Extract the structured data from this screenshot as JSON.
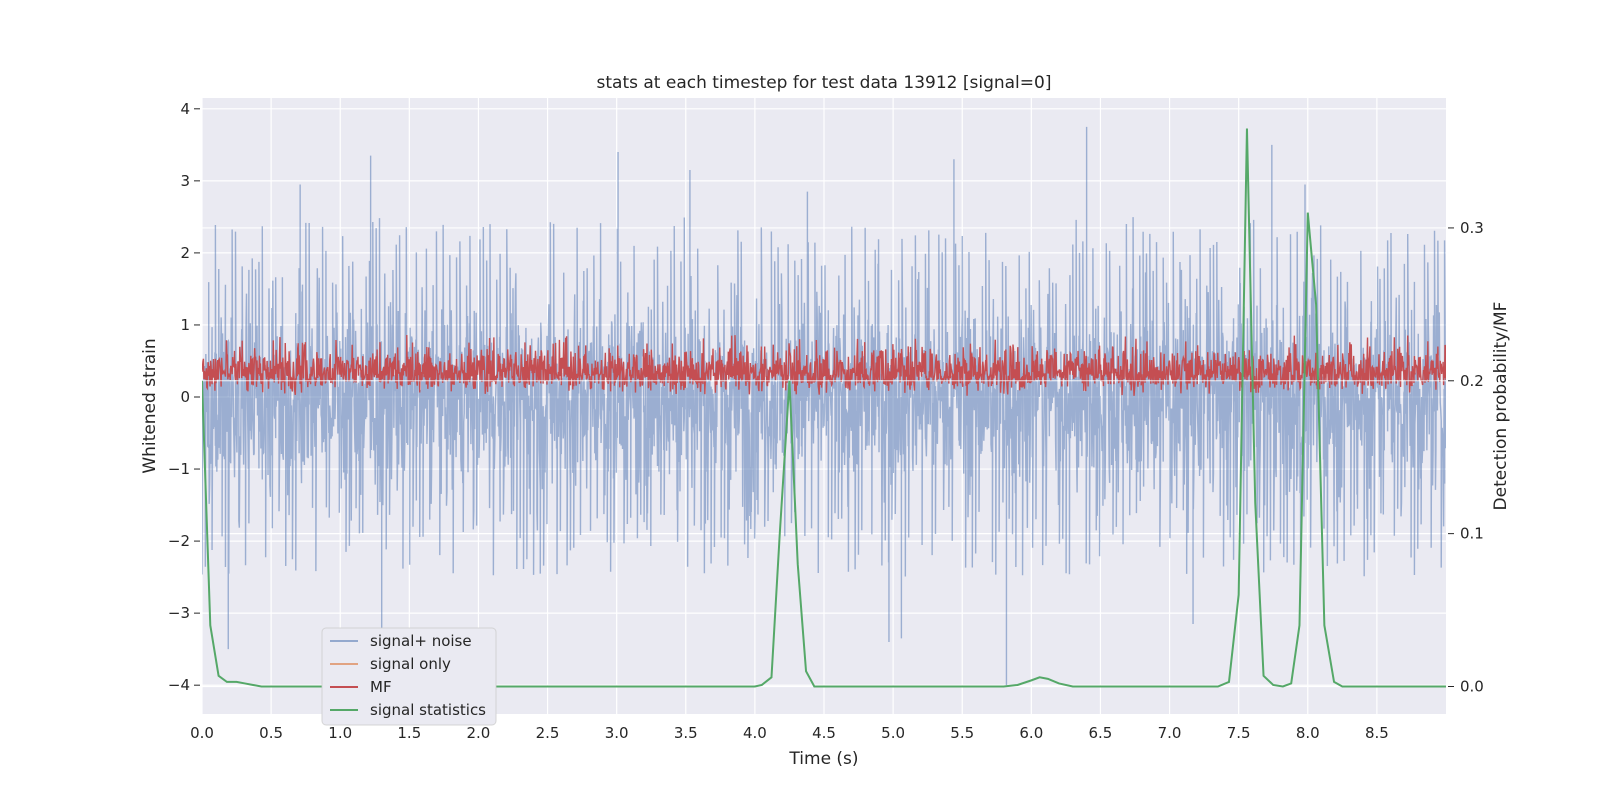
{
  "chart_data": {
    "type": "line",
    "title": "stats at each timestep for test data 13912 [signal=0]",
    "xlabel": "Time (s)",
    "ylabel_left": "Whitened strain",
    "ylabel_right": "Detection probability/MF",
    "xlim": [
      0.0,
      9.0
    ],
    "ylim_left": [
      -4.4,
      4.15
    ],
    "ylim_right": [
      -0.018,
      0.385
    ],
    "x_ticks": [
      "0.0",
      "0.5",
      "1.0",
      "1.5",
      "2.0",
      "2.5",
      "3.0",
      "3.5",
      "4.0",
      "4.5",
      "5.0",
      "5.5",
      "6.0",
      "6.5",
      "7.0",
      "7.5",
      "8.0",
      "8.5"
    ],
    "y_ticks_left": [
      "4",
      "3",
      "2",
      "1",
      "0",
      "−1",
      "−2",
      "−3",
      "−4"
    ],
    "y_ticks_right": [
      "0.3",
      "0.2",
      "0.1",
      "0.0"
    ],
    "grid": true,
    "legend_position": "lower-left",
    "series": [
      {
        "name": "signal+ noise",
        "color": "#4c72b0",
        "axis": "left",
        "description_stats": {
          "typical_min": -2.0,
          "typical_max": 2.3,
          "peak_max": 3.8,
          "peak_min": -4.0
        },
        "notable_peaks": [
          {
            "x": 0.19,
            "y": -3.5
          },
          {
            "x": 0.71,
            "y": 2.95
          },
          {
            "x": 1.22,
            "y": 3.35
          },
          {
            "x": 1.3,
            "y": -3.25
          },
          {
            "x": 3.01,
            "y": 3.4
          },
          {
            "x": 3.53,
            "y": 3.15
          },
          {
            "x": 4.38,
            "y": 2.85
          },
          {
            "x": 5.44,
            "y": 3.3
          },
          {
            "x": 5.82,
            "y": -4.0
          },
          {
            "x": 6.4,
            "y": 3.75
          },
          {
            "x": 7.74,
            "y": 3.5
          },
          {
            "x": 7.98,
            "y": 2.95
          },
          {
            "x": 4.97,
            "y": -3.4
          },
          {
            "x": 5.06,
            "y": -3.35
          },
          {
            "x": 7.17,
            "y": -3.15
          }
        ]
      },
      {
        "name": "signal only",
        "color": "#dd8452",
        "axis": "left",
        "x": [],
        "y": []
      },
      {
        "name": "MF",
        "color": "#c44e52",
        "axis": "right",
        "description_stats": {
          "baseline": 0.2,
          "typical_min": 0.19,
          "typical_max": 0.23,
          "peak_max": 0.232
        }
      },
      {
        "name": "signal statistics",
        "color": "#55a868",
        "axis": "right",
        "x": [
          0.0,
          0.06,
          0.12,
          0.18,
          0.25,
          0.31,
          0.37,
          0.43,
          0.5,
          1.0,
          2.0,
          3.0,
          3.6,
          4.0,
          4.05,
          4.12,
          4.18,
          4.25,
          4.31,
          4.37,
          4.43,
          4.5,
          5.0,
          5.5,
          5.8,
          5.9,
          6.0,
          6.06,
          6.12,
          6.2,
          6.3,
          6.5,
          7.0,
          7.35,
          7.43,
          7.5,
          7.56,
          7.62,
          7.68,
          7.75,
          7.82,
          7.88,
          7.94,
          8.0,
          8.06,
          8.12,
          8.19,
          8.25,
          8.5,
          9.0
        ],
        "y": [
          0.2,
          0.04,
          0.007,
          0.003,
          0.003,
          0.002,
          0.001,
          0.0,
          0.0,
          0.0,
          0.0,
          0.0,
          0.0,
          0.0,
          0.001,
          0.006,
          0.1,
          0.2,
          0.08,
          0.01,
          0.0,
          0.0,
          0.0,
          0.0,
          0.0,
          0.001,
          0.004,
          0.006,
          0.005,
          0.002,
          0.0,
          0.0,
          0.0,
          0.0,
          0.003,
          0.06,
          0.365,
          0.12,
          0.007,
          0.001,
          0.0,
          0.002,
          0.04,
          0.31,
          0.25,
          0.04,
          0.003,
          0.0,
          0.0,
          0.0
        ]
      }
    ]
  }
}
